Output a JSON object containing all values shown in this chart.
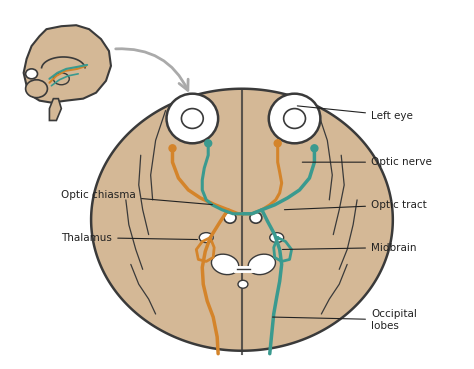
{
  "background_color": "#ffffff",
  "brain_color": "#d4b896",
  "brain_edge_color": "#3a3a3a",
  "orange_color": "#d4842a",
  "teal_color": "#3a9a8f",
  "label_color": "#222222",
  "line_color": "#222222",
  "arrow_color": "#aaaaaa",
  "labels": {
    "left_eye": "Left eye",
    "optic_nerve": "Optic nerve",
    "optic_chiasma": "Optic chiasma",
    "optic_tract": "Optic tract",
    "thalamus": "Thalamus",
    "midbrain": "Midbrain",
    "occipital_lobes": "Occipital\nlobes"
  },
  "figsize": [
    4.74,
    3.69
  ],
  "dpi": 100
}
